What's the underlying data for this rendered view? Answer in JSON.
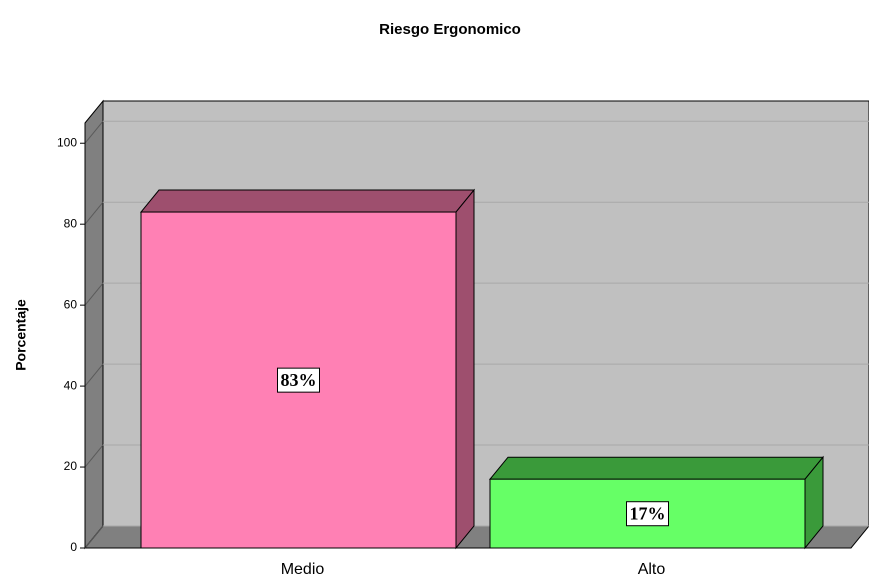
{
  "chart_data": {
    "type": "bar3d",
    "title": "Riesgo Ergonomico",
    "y_label": "Porcentaje",
    "categories": [
      "Medio",
      "Alto"
    ],
    "values": [
      83,
      17
    ],
    "value_labels": [
      "83%",
      "17%"
    ],
    "colors": [
      "#ff80b4",
      "#66ff66"
    ],
    "side_colors": [
      "#9e4f6e",
      "#3a9a3a"
    ],
    "ylim": [
      0,
      105
    ],
    "yticks": [
      0,
      20,
      40,
      60,
      80,
      100
    ],
    "grid": true
  }
}
